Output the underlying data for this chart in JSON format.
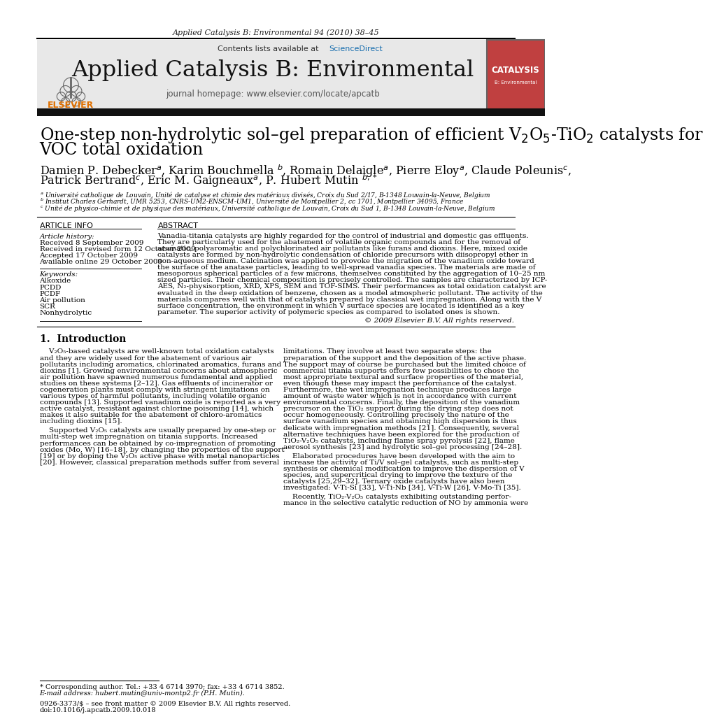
{
  "bg_color": "#ffffff",
  "header_journal_text": "Applied Catalysis B: Environmental 94 (2010) 38–45",
  "sciencedirect_color": "#1a6faf",
  "journal_name": "Applied Catalysis B: Environmental",
  "journal_homepage": "journal homepage: www.elsevier.com/locate/apcatb",
  "elsevier_color": "#e07000",
  "header_bg_color": "#e8e8e8",
  "cover_color": "#c04040",
  "title_line1": "One-step non-hydrolytic sol–gel preparation of efficient V$_2$O$_5$-TiO$_2$ catalysts for",
  "title_line2": "VOC total oxidation",
  "authors_line1": "Damien P. Debecker$^a$, Karim Bouchmella $^b$, Romain Delaigle$^a$, Pierre Eloy$^a$, Claude Poleunis$^c$,",
  "authors_line2": "Patrick Bertrand$^c$, Eric M. Gaigneaux$^a$, P. Hubert Mutin $^{b,*}$",
  "affil_a": "$^a$ Université catholique de Louvain, Unité de catalyse et chimie des matériaux divisés, Croix du Sud 2/17, B-1348 Louvain-la-Neuve, Belgium",
  "affil_b": "$^b$ Institut Charles Gerhardt, UMR 5253, CNRS-UM2-ENSCM-UM1, Université de Montpellier 2, cc 1701, Montpellier 34095, France",
  "affil_c": "$^c$ Unité de physico-chimie et de physique des matériaux, Université catholique de Louvain, Croix du Sud 1, B-1348 Louvain-la-Neuve, Belgium",
  "art_info_header": "ARTICLE INFO",
  "abstract_header": "ABSTRACT",
  "art_history_label": "Article history:",
  "received": "Received 8 September 2009",
  "received_revised": "Received in revised form 12 October 2009",
  "accepted": "Accepted 17 October 2009",
  "available": "Available online 29 October 2009",
  "keywords_label": "Keywords:",
  "keywords": [
    "Alkoxide",
    "PCDD",
    "PCDF",
    "Air pollution",
    "SCR",
    "Nonhydrolytic"
  ],
  "abstract_lines": [
    "Vanadia-titania catalysts are highly regarded for the control of industrial and domestic gas effluents.",
    "They are particularly used for the abatement of volatile organic compounds and for the removal of",
    "aromatic, polyaromatic and polychlorinated air pollutants like furans and dioxins. Here, mixed oxide",
    "catalysts are formed by non-hydrolytic condensation of chloride precursors with diisopropyl ether in",
    "non-aqueous medium. Calcination was applied to provoke the migration of the vanadium oxide toward",
    "the surface of the anatase particles, leading to well-spread vanadia species. The materials are made of",
    "mesoporous spherical particles of a few microns, themselves constituted by the aggregation of 10–25 nm",
    "sized particles. Their chemical composition is precisely controlled. The samples are characterized by ICP-",
    "AES, N₂-physisorption, XRD, XPS, SEM and TOF-SIMS. Their performances as total oxidation catalyst are",
    "evaluated in the deep oxidation of benzene, chosen as a model atmospheric pollutant. The activity of the",
    "materials compares well with that of catalysts prepared by classical wet impregnation. Along with the V",
    "surface concentration, the environment in which V surface species are located is identified as a key",
    "parameter. The superior activity of polymeric species as compared to isolated ones is shown."
  ],
  "copyright": "© 2009 Elsevier B.V. All rights reserved.",
  "intro_header": "1.  Introduction",
  "intro_c1_lines": [
    "    V₂O₅-based catalysts are well-known total oxidation catalysts",
    "and they are widely used for the abatement of various air",
    "pollutants including aromatics, chlorinated aromatics, furans and",
    "dioxins [1]. Growing environmental concerns about atmospheric",
    "air pollution have spawned numerous fundamental and applied",
    "studies on these systems [2–12]. Gas effluents of incinerator or",
    "cogeneration plants must comply with stringent limitations on",
    "various types of harmful pollutants, including volatile organic",
    "compounds [13]. Supported vanadium oxide is reported as a very",
    "active catalyst, resistant against chlorine poisoning [14], which",
    "makes it also suitable for the abatement of chloro-aromatics",
    "including dioxins [15].",
    "",
    "    Supported V₂O₅ catalysts are usually prepared by one-step or",
    "multi-step wet impregnation on titania supports. Increased",
    "performances can be obtained by co-impregnation of promoting",
    "oxides (Mo, W) [16–18], by changing the properties of the support",
    "[19] or by doping the V₂O₅ active phase with metal nanoparticles",
    "[20]. However, classical preparation methods suffer from several"
  ],
  "intro_c2_lines": [
    "limitations. They involve at least two separate steps: the",
    "preparation of the support and the deposition of the active phase.",
    "The support may of course be purchased but the limited choice of",
    "commercial titania supports offers few possibilities to chose the",
    "most appropriate textural and surface properties of the material,",
    "even though these may impact the performance of the catalyst.",
    "Furthermore, the wet impregnation technique produces large",
    "amount of waste water which is not in accordance with current",
    "environmental concerns. Finally, the deposition of the vanadium",
    "precursor on the TiO₂ support during the drying step does not",
    "occur homogeneously. Controlling precisely the nature of the",
    "surface vanadium species and obtaining high dispersion is thus",
    "delicate with impregnation methods [21]. Consequently, several",
    "alternative techniques have been explored for the production of",
    "TiO₂-V₂O₅ catalysts, including flame spray pyrolysis [22], flame",
    "aerosol synthesis [23] and hydrolytic sol–gel processing [24–28].",
    "",
    "    Elaborated procedures have been developed with the aim to",
    "increase the activity of Ti/V sol–gel catalysts, such as multi-step",
    "synthesis or chemical modification to improve the dispersion of V",
    "species, and supercritical drying to improve the texture of the",
    "catalysts [25,29–32]. Ternary oxide catalysts have also been",
    "investigated: V-Ti-Si [33], V-Ti-Nb [34], V-Ti-W [26], V-Mo-Ti [35].",
    "",
    "    Recently, TiO₂-V₂O₅ catalysts exhibiting outstanding perfor-",
    "mance in the selective catalytic reduction of NO by ammonia were"
  ],
  "footnote1": "* Corresponding author. Tel.: +33 4 6714 3970; fax: +33 4 6714 3852.",
  "footnote2": "E-mail address: hubert.mutin@univ-montp2.fr (P.H. Mutin).",
  "issn": "0926-3373/$ – see front matter © 2009 Elsevier B.V. All rights reserved.",
  "doi": "doi:10.1016/j.apcatb.2009.10.018"
}
